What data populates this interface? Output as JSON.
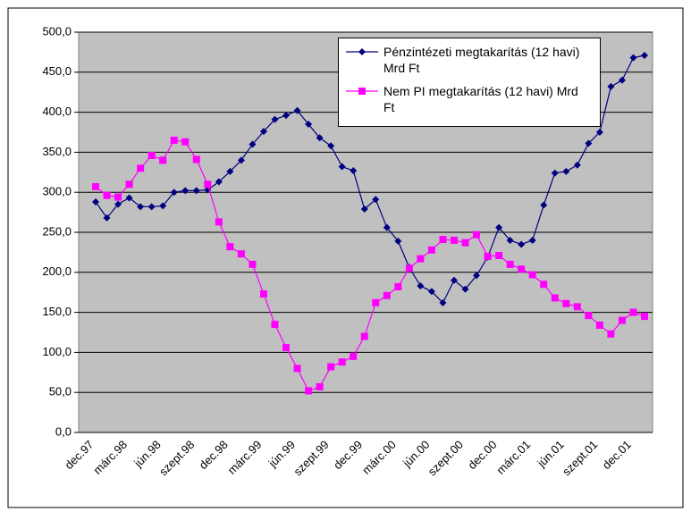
{
  "chart_data": {
    "type": "line",
    "categories": [
      "dec.97",
      null,
      null,
      "márc.98",
      null,
      null,
      "jún.98",
      null,
      null,
      "szept.98",
      null,
      null,
      "dec.98",
      null,
      null,
      "márc.99",
      null,
      null,
      "jún.99",
      null,
      null,
      "szept.99",
      null,
      null,
      "dec.99",
      null,
      null,
      "márc.00",
      null,
      null,
      "jún.00",
      null,
      null,
      "szept.00",
      null,
      null,
      "dec.00",
      null,
      null,
      "márc.01",
      null,
      null,
      "jún.01",
      null,
      null,
      "szept.01",
      null,
      null,
      "dec.01",
      null
    ],
    "series": [
      {
        "name": "Pénzintézeti megtakarítás (12 havi) Mrd Ft",
        "color": "#000080",
        "marker": "diamond",
        "values": [
          288,
          268,
          285,
          293,
          282,
          282,
          283,
          300,
          302,
          302,
          303,
          313,
          326,
          340,
          360,
          376,
          391,
          396,
          402,
          385,
          368,
          358,
          332,
          327,
          279,
          291,
          256,
          239,
          206,
          183,
          176,
          162,
          190,
          179,
          196,
          219,
          256,
          240,
          235,
          240,
          284,
          324,
          326,
          334,
          361,
          375,
          432,
          440,
          468,
          471
        ]
      },
      {
        "name": "Nem PI megtakarítás (12 havi) Mrd Ft",
        "color": "#ff00ff",
        "marker": "square",
        "values": [
          307,
          296,
          294,
          310,
          330,
          346,
          340,
          365,
          363,
          341,
          310,
          263,
          232,
          223,
          210,
          173,
          135,
          106,
          80,
          52,
          57,
          82,
          88,
          95,
          120,
          162,
          171,
          182,
          205,
          217,
          228,
          241,
          240,
          237,
          247,
          220,
          221,
          210,
          204,
          197,
          185,
          168,
          161,
          157,
          146,
          134,
          123,
          140,
          150,
          145
        ]
      }
    ],
    "ylim": [
      0,
      500
    ],
    "yticks": [
      {
        "value": 0,
        "label": "0,0"
      },
      {
        "value": 50,
        "label": "50,0"
      },
      {
        "value": 100,
        "label": "100,0"
      },
      {
        "value": 150,
        "label": "150,0"
      },
      {
        "value": 200,
        "label": "200,0"
      },
      {
        "value": 250,
        "label": "250,0"
      },
      {
        "value": 300,
        "label": "300,0"
      },
      {
        "value": 350,
        "label": "350,0"
      },
      {
        "value": 400,
        "label": "400,0"
      },
      {
        "value": 450,
        "label": "450,0"
      },
      {
        "value": 500,
        "label": "500,0"
      }
    ],
    "grid": true,
    "legend": "top-right",
    "background": "#c0c0c0"
  }
}
